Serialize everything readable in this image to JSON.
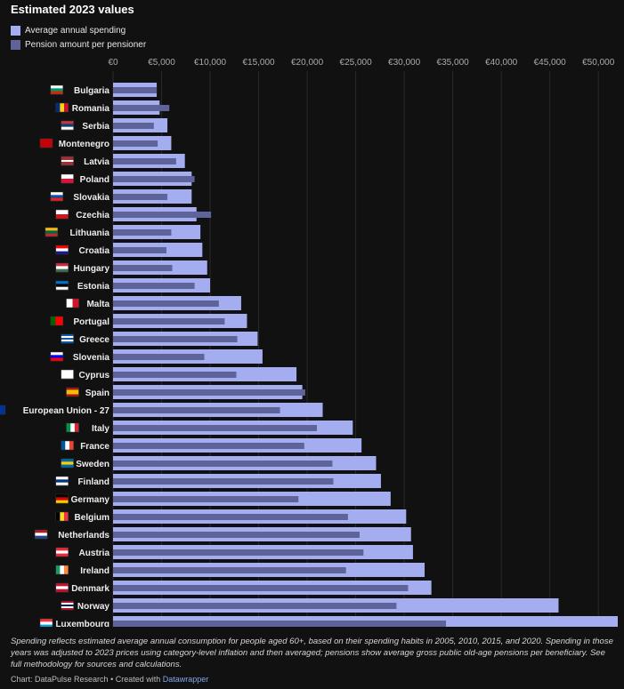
{
  "title": "Estimated 2023 values",
  "legend": [
    {
      "label": "Average annual spending",
      "color": "#a4adef"
    },
    {
      "label": "Pension amount per pensioner",
      "color": "#5e6399"
    }
  ],
  "chart_data": {
    "type": "bar",
    "orientation": "horizontal",
    "title": "Estimated 2023 values",
    "x_ticks": [
      "€0",
      "€5,000",
      "€10,000",
      "€15,000",
      "€20,000",
      "€25,000",
      "€30,000",
      "€35,000",
      "€40,000",
      "€45,000",
      "€50,000"
    ],
    "xlim": [
      0,
      52000
    ],
    "categories": [
      "Bulgaria",
      "Romania",
      "Serbia",
      "Montenegro",
      "Latvia",
      "Poland",
      "Slovakia",
      "Czechia",
      "Lithuania",
      "Croatia",
      "Hungary",
      "Estonia",
      "Malta",
      "Portugal",
      "Greece",
      "Slovenia",
      "Cyprus",
      "Spain",
      "European Union - 27",
      "Italy",
      "France",
      "Sweden",
      "Finland",
      "Germany",
      "Belgium",
      "Netherlands",
      "Austria",
      "Ireland",
      "Denmark",
      "Norway",
      "Luxembourg"
    ],
    "series": [
      {
        "name": "Average annual spending",
        "color": "#a4adef",
        "values": [
          4500,
          4800,
          5600,
          6000,
          7400,
          8100,
          8100,
          8600,
          9000,
          9200,
          9700,
          10000,
          13200,
          13800,
          14900,
          15400,
          18900,
          19500,
          21600,
          24700,
          25600,
          27100,
          27600,
          28600,
          30200,
          30700,
          30900,
          32100,
          32800,
          45900,
          52000
        ]
      },
      {
        "name": "Pension amount per pensioner",
        "color": "#5e6399",
        "values": [
          4500,
          5800,
          4200,
          4600,
          6500,
          8400,
          5600,
          10100,
          6000,
          5500,
          6100,
          8400,
          10900,
          11500,
          12800,
          9400,
          12700,
          19800,
          17200,
          21000,
          19700,
          22600,
          22700,
          19100,
          24200,
          25400,
          25800,
          24000,
          30400,
          29200,
          34300
        ]
      }
    ],
    "flags": [
      {
        "colors": [
          "#ffffff",
          "#00966e",
          "#d62612"
        ],
        "dir": "h"
      },
      {
        "colors": [
          "#002b7f",
          "#fcd116",
          "#ce1126"
        ],
        "dir": "v"
      },
      {
        "colors": [
          "#c6363c",
          "#0c4076",
          "#ffffff"
        ],
        "dir": "h"
      },
      {
        "colors": [
          "#c40308"
        ],
        "dir": "h"
      },
      {
        "colors": [
          "#9e3039",
          "#9e3039",
          "#ffffff",
          "#9e3039",
          "#9e3039"
        ],
        "dir": "h"
      },
      {
        "colors": [
          "#ffffff",
          "#dc143c"
        ],
        "dir": "h"
      },
      {
        "colors": [
          "#ffffff",
          "#0b4ea2",
          "#ee1c25"
        ],
        "dir": "h"
      },
      {
        "colors": [
          "#ffffff",
          "#d7141a"
        ],
        "dir": "h"
      },
      {
        "colors": [
          "#fdb913",
          "#006a44",
          "#c1272d"
        ],
        "dir": "h"
      },
      {
        "colors": [
          "#ff0000",
          "#ffffff",
          "#171796"
        ],
        "dir": "h"
      },
      {
        "colors": [
          "#cd2a3e",
          "#ffffff",
          "#436f4d"
        ],
        "dir": "h"
      },
      {
        "colors": [
          "#0072ce",
          "#000000",
          "#ffffff"
        ],
        "dir": "h"
      },
      {
        "colors": [
          "#ffffff",
          "#cf142b"
        ],
        "dir": "v"
      },
      {
        "colors": [
          "#006600",
          "#006600",
          "#ff0000",
          "#ff0000",
          "#ff0000"
        ],
        "dir": "v"
      },
      {
        "colors": [
          "#0d5eaf",
          "#ffffff",
          "#0d5eaf",
          "#ffffff",
          "#0d5eaf"
        ],
        "dir": "h"
      },
      {
        "colors": [
          "#ffffff",
          "#0000ff",
          "#ff0000"
        ],
        "dir": "h"
      },
      {
        "colors": [
          "#ffffff"
        ],
        "dir": "h"
      },
      {
        "colors": [
          "#aa151b",
          "#f1bf00",
          "#f1bf00",
          "#aa151b"
        ],
        "dir": "h"
      },
      {
        "colors": [
          "#003399"
        ],
        "dir": "h"
      },
      {
        "colors": [
          "#009246",
          "#ffffff",
          "#ce2b37"
        ],
        "dir": "v"
      },
      {
        "colors": [
          "#0055a4",
          "#ffffff",
          "#ef4135"
        ],
        "dir": "v"
      },
      {
        "colors": [
          "#006aa7",
          "#fecc00",
          "#006aa7"
        ],
        "dir": "h"
      },
      {
        "colors": [
          "#ffffff",
          "#003580",
          "#ffffff"
        ],
        "dir": "h"
      },
      {
        "colors": [
          "#000000",
          "#dd0000",
          "#ffce00"
        ],
        "dir": "h"
      },
      {
        "colors": [
          "#000000",
          "#fdda24",
          "#ef3340"
        ],
        "dir": "v"
      },
      {
        "colors": [
          "#ae1c28",
          "#ffffff",
          "#21468b"
        ],
        "dir": "h"
      },
      {
        "colors": [
          "#ed2939",
          "#ffffff",
          "#ed2939"
        ],
        "dir": "h"
      },
      {
        "colors": [
          "#169b62",
          "#ffffff",
          "#ff883e"
        ],
        "dir": "v"
      },
      {
        "colors": [
          "#c8102e",
          "#ffffff",
          "#c8102e"
        ],
        "dir": "h"
      },
      {
        "colors": [
          "#ba0c2f",
          "#ffffff",
          "#00205b",
          "#ffffff",
          "#ba0c2f"
        ],
        "dir": "h"
      },
      {
        "colors": [
          "#ef3340",
          "#ffffff",
          "#00a3e0"
        ],
        "dir": "h"
      }
    ]
  },
  "notes": "Spending reflects estimated average annual consumption for people aged 60+, based on their spending habits in 2005, 2010, 2015, and 2020. Spending in those years was adjusted to 2023 prices using category-level inflation and then averaged; pensions show average gross public old-age pensions per beneficiary. See full methodology for sources and calculations.",
  "source": {
    "prefix": "Chart: DataPulse Research",
    "created_with": "• Created with",
    "link": "Datawrapper"
  }
}
